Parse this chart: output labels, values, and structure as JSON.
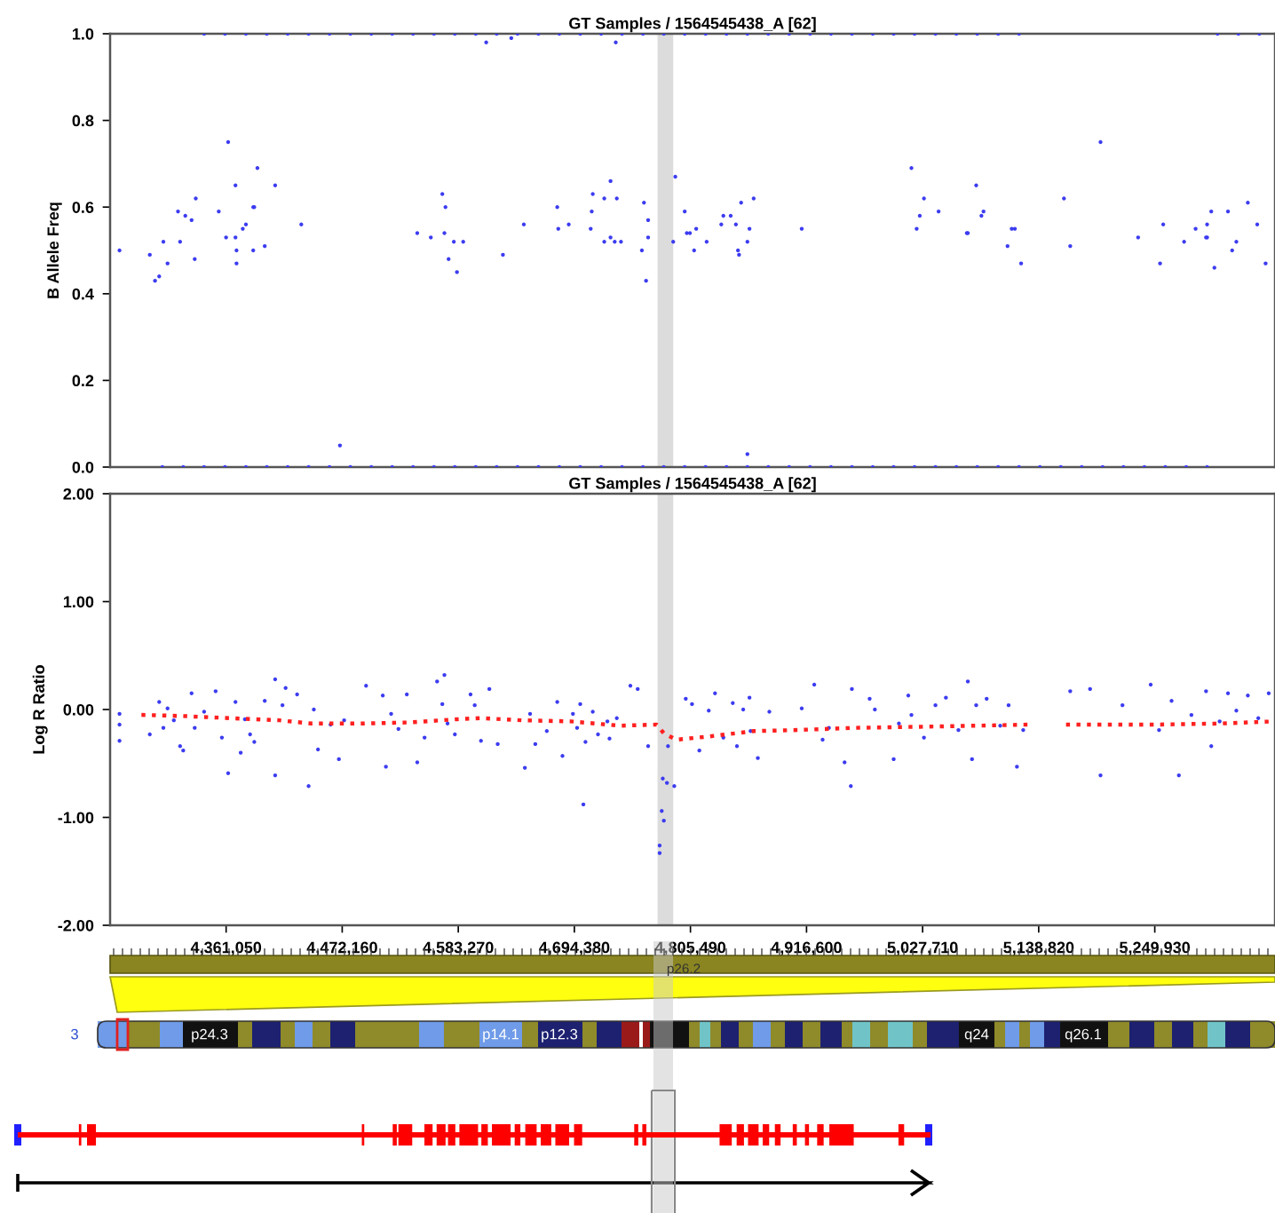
{
  "chart_data": [
    {
      "type": "scatter",
      "title": "GT Samples / 1564545438_A [62]",
      "ylabel": "B Allele Freq",
      "xlim": [
        4250000,
        5365000
      ],
      "ylim": [
        0,
        1
      ],
      "yticks": [
        {
          "value": 0,
          "label": "0.0"
        },
        {
          "value": 0.2,
          "label": "0.2"
        },
        {
          "value": 0.4,
          "label": "0.4"
        },
        {
          "value": 0.6,
          "label": "0.6"
        },
        {
          "value": 0.8,
          "label": "0.8"
        },
        {
          "value": 1,
          "label": "1.0"
        }
      ],
      "tick_labels": "y",
      "grid": false,
      "bands": [
        {
          "axis": "x",
          "from": 4774000,
          "to": 4789000,
          "color": "#dcdcdc"
        }
      ],
      "series": [
        {
          "color": "#3c3cf0",
          "x": [
            4259000,
            4288000,
            4293000,
            4297000,
            4301000,
            4305000,
            4315000,
            4317000,
            4322000,
            4328000,
            4331000,
            4332000,
            4354000,
            4363000,
            4361000,
            4370000,
            4370000,
            4371000,
            4371000,
            4377000,
            4380000,
            4387000,
            4388000,
            4387000,
            4391000,
            4398000,
            4408000,
            4433000,
            4470000,
            4544000,
            4557000,
            4568000,
            4571000,
            4570000,
            4574000,
            4579000,
            4582000,
            4588000,
            4610000,
            4626000,
            4634000,
            4646000,
            4678000,
            4679000,
            4689000,
            4710000,
            4711000,
            4712000,
            4723000,
            4723000,
            4729000,
            4729000,
            4733000,
            4735000,
            4739000,
            4734000,
            4759000,
            4761000,
            4763000,
            4765000,
            4765000,
            4791000,
            4789000,
            4800000,
            4802000,
            4805000,
            4809000,
            4811000,
            4821000,
            4835000,
            4837000,
            4844000,
            4849000,
            4851000,
            4852000,
            4854000,
            4860000,
            4862000,
            4866000,
            4860000,
            4912000,
            5017000,
            5022000,
            5025000,
            5029000,
            5043000,
            5070000,
            5071000,
            5079000,
            5084000,
            5086000,
            5109000,
            5113000,
            5116000,
            5122000,
            5163000,
            5169000,
            5198000,
            5234000,
            5255000,
            5258000,
            5278000,
            5289000,
            5299000,
            5300000,
            5300000,
            5304000,
            5307000,
            5320000,
            5324000,
            5328000,
            5339000,
            5348000,
            5356000
          ],
          "values": [
            0.5,
            0.49,
            0.43,
            0.44,
            0.52,
            0.47,
            0.59,
            0.52,
            0.58,
            0.57,
            0.48,
            0.62,
            0.59,
            0.75,
            0.53,
            0.65,
            0.53,
            0.5,
            0.47,
            0.55,
            0.56,
            0.6,
            0.6,
            0.5,
            0.69,
            0.51,
            0.65,
            0.56,
            0.05,
            0.54,
            0.53,
            0.63,
            0.6,
            0.54,
            0.48,
            0.52,
            0.45,
            0.52,
            0.98,
            0.49,
            0.99,
            0.56,
            0.6,
            0.55,
            0.56,
            0.55,
            0.59,
            0.63,
            0.62,
            0.52,
            0.66,
            0.53,
            0.52,
            0.62,
            0.52,
            0.98,
            0.5,
            0.61,
            0.43,
            0.57,
            0.53,
            0.67,
            0.52,
            0.59,
            0.54,
            0.54,
            0.5,
            0.55,
            0.52,
            0.56,
            0.58,
            0.58,
            0.56,
            0.5,
            0.49,
            0.61,
            0.52,
            0.55,
            0.62,
            0.03,
            0.55,
            0.69,
            0.55,
            0.58,
            0.62,
            0.59,
            0.54,
            0.54,
            0.65,
            0.58,
            0.59,
            0.51,
            0.55,
            0.55,
            0.47,
            0.62,
            0.51,
            0.75,
            0.53,
            0.47,
            0.56,
            0.52,
            0.55,
            0.53,
            0.56,
            0.53,
            0.59,
            0.46,
            0.59,
            0.5,
            0.52,
            0.61,
            0.56,
            0.47
          ]
        },
        {
          "color": "#3c3cf0",
          "x": [
            4340000,
            4360000,
            4380000,
            4400000,
            4420000,
            4440000,
            4460000,
            4480000,
            4500000,
            4520000,
            4540000,
            4560000,
            4580000,
            4600000,
            4620000,
            4640000,
            4660000,
            4680000,
            4700000,
            4720000,
            4740000,
            4760000,
            4780000,
            4800000,
            4820000,
            4840000,
            4860000,
            4880000,
            4900000,
            4920000,
            4940000,
            4960000,
            4980000,
            5000000,
            5020000,
            5040000,
            5060000,
            5080000,
            5100000,
            5120000,
            5310000,
            5330000,
            5350000
          ],
          "values": [
            1,
            1,
            1,
            1,
            1,
            1,
            1,
            1,
            1,
            1,
            1,
            1,
            1,
            1,
            1,
            1,
            1,
            1,
            1,
            1,
            1,
            1,
            1,
            1,
            1,
            1,
            1,
            1,
            1,
            1,
            1,
            1,
            1,
            1,
            1,
            1,
            1,
            1,
            1,
            1,
            1,
            1,
            1
          ]
        },
        {
          "color": "#3c3cf0",
          "x": [
            4300000,
            4320000,
            4340000,
            4360000,
            4380000,
            4400000,
            4420000,
            4440000,
            4460000,
            4480000,
            4500000,
            4520000,
            4540000,
            4560000,
            4580000,
            4600000,
            4620000,
            4640000,
            4660000,
            4680000,
            4700000,
            4720000,
            4740000,
            4760000,
            4780000,
            4800000,
            4820000,
            4840000,
            4860000,
            4880000,
            4900000,
            4920000,
            4940000,
            4960000,
            4980000,
            5000000,
            5020000,
            5040000,
            5060000,
            5080000,
            5100000,
            5120000,
            5140000,
            5160000,
            5180000,
            5200000,
            5220000,
            5240000,
            5260000,
            5280000,
            5300000
          ],
          "values": [
            0,
            0,
            0,
            0,
            0,
            0,
            0,
            0,
            0,
            0,
            0,
            0,
            0,
            0,
            0,
            0,
            0,
            0,
            0,
            0,
            0,
            0,
            0,
            0,
            0,
            0,
            0,
            0,
            0,
            0,
            0,
            0,
            0,
            0,
            0,
            0,
            0,
            0,
            0,
            0,
            0,
            0,
            0,
            0,
            0,
            0,
            0,
            0,
            0,
            0,
            0
          ]
        }
      ]
    },
    {
      "type": "scatter",
      "title": "GT Samples / 1564545438_A [62]",
      "ylabel": "Log R Ratio",
      "xlim": [
        4250000,
        5365000
      ],
      "ylim": [
        -2,
        2
      ],
      "yticks": [
        {
          "value": -2,
          "label": "-2.00"
        },
        {
          "value": -1,
          "label": "-1.00"
        },
        {
          "value": 0,
          "label": "0.00"
        },
        {
          "value": 1,
          "label": "1.00"
        },
        {
          "value": 2,
          "label": "2.00"
        }
      ],
      "xticks": [
        {
          "value": 4361050,
          "label": "4,361,050"
        },
        {
          "value": 4472160,
          "label": "4,472,160"
        },
        {
          "value": 4583270,
          "label": "4,583,270"
        },
        {
          "value": 4694380,
          "label": "4,694,380"
        },
        {
          "value": 4805490,
          "label": "4,805,490"
        },
        {
          "value": 4916600,
          "label": "4,916,600"
        },
        {
          "value": 5027710,
          "label": "5,027,710"
        },
        {
          "value": 5138820,
          "label": "5,138,820"
        },
        {
          "value": 5249930,
          "label": "5,249,930"
        }
      ],
      "grid": false,
      "bands": [
        {
          "axis": "x",
          "from": 4774000,
          "to": 4789000,
          "color": "#dcdcdc"
        }
      ],
      "series": [
        {
          "color": "#3c3cf0",
          "x": [
            4259000,
            4259000,
            4259000,
            4288000,
            4297000,
            4301000,
            4305000,
            4311000,
            4317000,
            4320000,
            4328000,
            4331000,
            4340000,
            4351000,
            4357000,
            4363000,
            4370000,
            4375000,
            4379000,
            4384000,
            4388000,
            4398000,
            4408000,
            4408000,
            4415000,
            4418000,
            4429000,
            4440000,
            4445000,
            4449000,
            4461000,
            4469000,
            4474000,
            4495000,
            4511000,
            4514000,
            4519000,
            4526000,
            4534000,
            4544000,
            4551000,
            4563000,
            4570000,
            4568000,
            4573000,
            4580000,
            4595000,
            4599000,
            4605000,
            4613000,
            4621000,
            4647000,
            4652000,
            4657000,
            4668000,
            4678000,
            4683000,
            4693000,
            4697000,
            4700000,
            4703000,
            4705000,
            4712000,
            4717000,
            4726000,
            4728000,
            4735000,
            4748000,
            4755000,
            4765000,
            4779000,
            4778000,
            4780000,
            4776000,
            4776000,
            4783000,
            4784000,
            4790000,
            4801000,
            4807000,
            4814000,
            4823000,
            4829000,
            4837000,
            4846000,
            4850000,
            4856000,
            4862000,
            4863000,
            4870000,
            4881000,
            4912000,
            4924000,
            4932000,
            4938000,
            4953000,
            4959000,
            4960000,
            4977000,
            4982000,
            5000000,
            5005000,
            5014000,
            5017000,
            5029000,
            5040000,
            5050000,
            5062000,
            5071000,
            5075000,
            5079000,
            5089000,
            5102000,
            5110000,
            5118000,
            5124000,
            5169000,
            5188000,
            5198000,
            5219000,
            5246000,
            5254000,
            5266000,
            5273000,
            5285000,
            5299000,
            5304000,
            5312000,
            5320000,
            5328000,
            5339000,
            5349000,
            5359000
          ],
          "values": [
            -0.04,
            -0.14,
            -0.29,
            -0.23,
            0.07,
            -0.17,
            0.01,
            -0.1,
            -0.34,
            -0.38,
            0.15,
            -0.17,
            -0.02,
            0.17,
            -0.26,
            -0.59,
            0.07,
            -0.4,
            -0.09,
            -0.23,
            -0.3,
            0.08,
            0.28,
            -0.61,
            0.04,
            0.2,
            0.14,
            -0.71,
            0.0,
            -0.37,
            -0.14,
            -0.46,
            -0.1,
            0.22,
            0.13,
            -0.53,
            -0.04,
            -0.18,
            0.14,
            -0.49,
            -0.26,
            0.26,
            0.32,
            0.05,
            -0.13,
            -0.23,
            0.14,
            0.04,
            -0.29,
            0.19,
            -0.32,
            -0.54,
            -0.04,
            -0.32,
            -0.2,
            0.07,
            -0.43,
            -0.04,
            -0.17,
            0.05,
            -0.88,
            -0.3,
            -0.02,
            -0.23,
            -0.11,
            -0.27,
            -0.08,
            0.22,
            0.19,
            -0.34,
            -0.64,
            -0.94,
            -1.03,
            -1.26,
            -1.33,
            -0.68,
            -0.34,
            -0.71,
            0.1,
            0.05,
            -0.38,
            -0.01,
            0.15,
            -0.26,
            0.06,
            -0.34,
            0.0,
            0.11,
            -0.2,
            -0.45,
            -0.02,
            0.01,
            0.23,
            -0.28,
            -0.17,
            -0.49,
            -0.71,
            0.19,
            0.1,
            0.0,
            -0.46,
            -0.13,
            0.13,
            -0.05,
            -0.26,
            0.04,
            0.11,
            -0.19,
            0.26,
            -0.46,
            0.04,
            0.1,
            -0.15,
            0.04,
            -0.53,
            -0.19,
            0.17,
            0.19,
            -0.61,
            0.04,
            0.23,
            -0.19,
            0.08,
            -0.61,
            -0.05,
            0.17,
            -0.34,
            -0.11,
            0.15,
            -0.01,
            0.13,
            -0.08,
            0.15
          ]
        },
        {
          "type": "line",
          "line_style": "dotted",
          "color": "#ff2020",
          "x": [
            4280000,
            4318000,
            4365000,
            4412000,
            4443000,
            4489000,
            4536000,
            4582000,
            4606000,
            4644000,
            4691000,
            4738000,
            4773000,
            4780000,
            4792000,
            4823000,
            4866000,
            4908000,
            4963000,
            5025000,
            5079000,
            5130000,
            5148000,
            5165000,
            5250000,
            5312000,
            5365000
          ],
          "values": [
            -0.05,
            -0.06,
            -0.08,
            -0.1,
            -0.13,
            -0.13,
            -0.12,
            -0.09,
            -0.08,
            -0.1,
            -0.11,
            -0.15,
            -0.14,
            -0.22,
            -0.28,
            -0.25,
            -0.2,
            -0.19,
            -0.17,
            -0.16,
            -0.15,
            -0.14,
            null,
            -0.14,
            -0.14,
            -0.13,
            -0.11
          ]
        }
      ]
    },
    {
      "type": "other",
      "annotations": [
        "p26.2",
        "3",
        "p24.3",
        "p14.1",
        "p12.3",
        "q24",
        "q26.1"
      ]
    }
  ]
}
